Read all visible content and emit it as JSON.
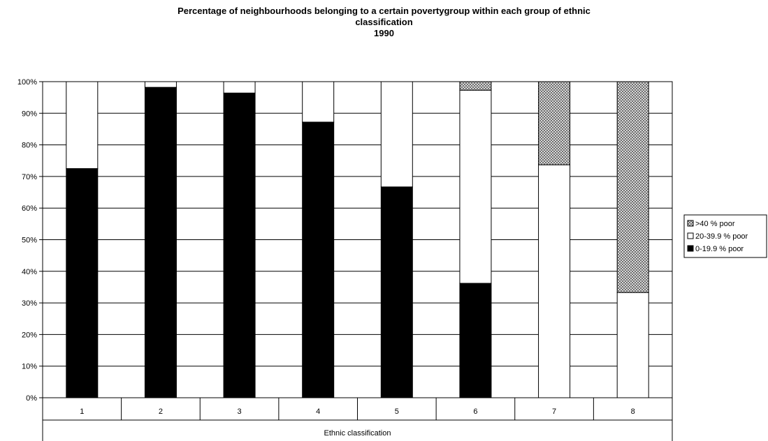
{
  "chart_data": {
    "type": "bar",
    "stacked": true,
    "title_lines": [
      "Percentage of neighbourhoods belonging to a certain povertygroup within each group of ethnic",
      "classification",
      "1990"
    ],
    "xlabel": "Ethnic classification",
    "ylabel": "",
    "categories": [
      "1",
      "2",
      "3",
      "4",
      "5",
      "6",
      "7",
      "8"
    ],
    "y_ticks": [
      "0%",
      "10%",
      "20%",
      "30%",
      "40%",
      "50%",
      "60%",
      "70%",
      "80%",
      "90%",
      "100%"
    ],
    "ylim": [
      0,
      100
    ],
    "grid": true,
    "legend_position": "right",
    "series": [
      {
        "name": "0-19.9 % poor",
        "values": [
          72.5,
          98.2,
          96.4,
          87.2,
          66.7,
          36.2,
          0,
          0
        ],
        "color": "#000000"
      },
      {
        "name": "20-39.9 % poor",
        "values": [
          27.5,
          1.8,
          3.6,
          12.8,
          33.3,
          61.1,
          73.7,
          33.3
        ],
        "color": "#ffffff"
      },
      {
        "name": ">40 % poor",
        "values": [
          0,
          0,
          0,
          0,
          0,
          2.7,
          26.3,
          66.7
        ],
        "color": "hatched-gray"
      }
    ],
    "legend_order": [
      ">40 % poor",
      "20-39.9 % poor",
      "0-19.9 % poor"
    ]
  }
}
